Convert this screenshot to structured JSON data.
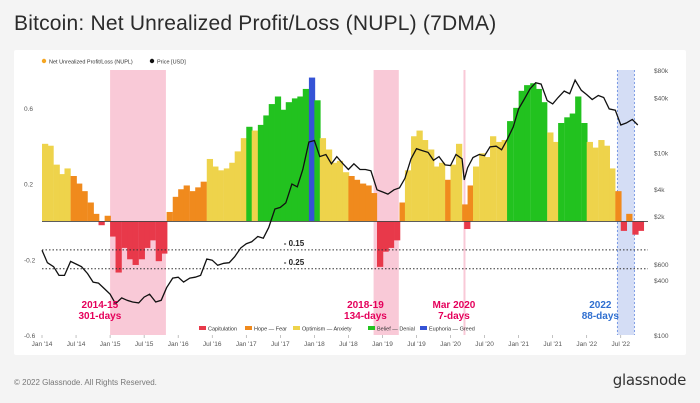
{
  "page": {
    "title": "Bitcoin: Net Unrealized Profit/Loss (NUPL) (7DMA)",
    "copyright": "© 2022 Glassnode. All Rights Reserved.",
    "brand": "glassnode"
  },
  "colors": {
    "capitulation": "#e8394a",
    "hope_fear": "#f08a1d",
    "optimism_anxiety": "#eed34b",
    "belief_denial": "#22c21f",
    "euphoria_greed": "#3553d6",
    "price": "#111111",
    "pink_shade": "#f9c9d7",
    "blue_shade": "#d4ddf5",
    "label_red": "#e5005b",
    "label_blue": "#2f6fd0"
  },
  "chart_data": {
    "type": "bar",
    "title": "",
    "legend_top": [
      {
        "key": "nupl",
        "label": "Net Unrealized Profit/Loss (NUPL)",
        "color": "#f5a623"
      },
      {
        "key": "price",
        "label": "Price [USD]",
        "color": "#111111"
      }
    ],
    "legend_bottom": [
      {
        "label": "Capitulation",
        "color": "#e8394a"
      },
      {
        "label": "Hope — Fear",
        "color": "#f08a1d"
      },
      {
        "label": "Optimism — Anxiety",
        "color": "#eed34b"
      },
      {
        "label": "Belief — Denial",
        "color": "#22c21f"
      },
      {
        "label": "Euphoria — Greed",
        "color": "#3553d6"
      }
    ],
    "x_ticks": [
      "Jan '14",
      "Jul '14",
      "Jan '15",
      "Jul '15",
      "Jan '16",
      "Jul '16",
      "Jan '17",
      "Jul '17",
      "Jan '18",
      "Jul '18",
      "Jan '19",
      "Jul '19",
      "Jan '20",
      "Jul '20",
      "Jan '21",
      "Jul '21",
      "Jan '22",
      "Jul '22"
    ],
    "x_range": [
      2014.0,
      2022.9
    ],
    "y_left": {
      "range": [
        -0.6,
        0.8
      ],
      "ticks": [
        "0.6",
        "0.2",
        "-0.2",
        "-0.6"
      ],
      "tick_values": [
        0.6,
        0.2,
        -0.2,
        -0.6
      ]
    },
    "y_right": {
      "scale": "log",
      "range": [
        100,
        80000
      ],
      "ticks": [
        "$80k",
        "$40k",
        "$10k",
        "$4k",
        "$2k",
        "$600",
        "$400",
        "$100"
      ],
      "tick_values": [
        80000,
        40000,
        10000,
        4000,
        2000,
        600,
        400,
        100
      ]
    },
    "thresholds": [
      {
        "value": -0.15,
        "label": "- 0.15"
      },
      {
        "value": -0.25,
        "label": "- 0.25"
      }
    ],
    "shaded_periods": [
      {
        "start": 2015.0,
        "end": 2015.82,
        "label": "2014-15",
        "sublabel": "301-days",
        "color": "pink"
      },
      {
        "start": 2018.87,
        "end": 2019.24,
        "label": "2018-19",
        "sublabel": "134-days",
        "color": "pink"
      },
      {
        "start": 2020.19,
        "end": 2020.21,
        "label": "Mar 2020",
        "sublabel": "7-days",
        "color": "pink"
      },
      {
        "start": 2022.45,
        "end": 2022.7,
        "label": "2022",
        "sublabel": "88-days",
        "color": "blue"
      }
    ],
    "nupl": [
      {
        "x": 2014.0,
        "y": 0.41
      },
      {
        "x": 2014.08,
        "y": 0.4
      },
      {
        "x": 2014.17,
        "y": 0.3
      },
      {
        "x": 2014.25,
        "y": 0.25
      },
      {
        "x": 2014.33,
        "y": 0.28
      },
      {
        "x": 2014.42,
        "y": 0.24
      },
      {
        "x": 2014.5,
        "y": 0.2
      },
      {
        "x": 2014.58,
        "y": 0.16
      },
      {
        "x": 2014.67,
        "y": 0.1
      },
      {
        "x": 2014.75,
        "y": 0.04
      },
      {
        "x": 2014.83,
        "y": -0.02
      },
      {
        "x": 2014.92,
        "y": 0.03
      },
      {
        "x": 2015.0,
        "y": -0.08
      },
      {
        "x": 2015.08,
        "y": -0.27
      },
      {
        "x": 2015.17,
        "y": -0.14
      },
      {
        "x": 2015.25,
        "y": -0.2
      },
      {
        "x": 2015.33,
        "y": -0.23
      },
      {
        "x": 2015.42,
        "y": -0.2
      },
      {
        "x": 2015.5,
        "y": -0.14
      },
      {
        "x": 2015.58,
        "y": -0.1
      },
      {
        "x": 2015.67,
        "y": -0.21
      },
      {
        "x": 2015.75,
        "y": -0.17
      },
      {
        "x": 2015.83,
        "y": 0.05
      },
      {
        "x": 2015.92,
        "y": 0.13
      },
      {
        "x": 2016.0,
        "y": 0.17
      },
      {
        "x": 2016.08,
        "y": 0.19
      },
      {
        "x": 2016.17,
        "y": 0.16
      },
      {
        "x": 2016.25,
        "y": 0.18
      },
      {
        "x": 2016.33,
        "y": 0.21
      },
      {
        "x": 2016.42,
        "y": 0.33
      },
      {
        "x": 2016.5,
        "y": 0.29
      },
      {
        "x": 2016.58,
        "y": 0.27
      },
      {
        "x": 2016.67,
        "y": 0.28
      },
      {
        "x": 2016.75,
        "y": 0.31
      },
      {
        "x": 2016.83,
        "y": 0.37
      },
      {
        "x": 2016.92,
        "y": 0.44
      },
      {
        "x": 2017.0,
        "y": 0.5
      },
      {
        "x": 2017.08,
        "y": 0.48
      },
      {
        "x": 2017.17,
        "y": 0.51
      },
      {
        "x": 2017.25,
        "y": 0.56
      },
      {
        "x": 2017.33,
        "y": 0.62
      },
      {
        "x": 2017.42,
        "y": 0.66
      },
      {
        "x": 2017.5,
        "y": 0.59
      },
      {
        "x": 2017.58,
        "y": 0.63
      },
      {
        "x": 2017.67,
        "y": 0.65
      },
      {
        "x": 2017.75,
        "y": 0.66
      },
      {
        "x": 2017.83,
        "y": 0.7
      },
      {
        "x": 2017.92,
        "y": 0.76
      },
      {
        "x": 2018.0,
        "y": 0.64
      },
      {
        "x": 2018.08,
        "y": 0.44
      },
      {
        "x": 2018.17,
        "y": 0.38
      },
      {
        "x": 2018.25,
        "y": 0.31
      },
      {
        "x": 2018.33,
        "y": 0.32
      },
      {
        "x": 2018.42,
        "y": 0.26
      },
      {
        "x": 2018.5,
        "y": 0.24
      },
      {
        "x": 2018.58,
        "y": 0.22
      },
      {
        "x": 2018.67,
        "y": 0.2
      },
      {
        "x": 2018.75,
        "y": 0.19
      },
      {
        "x": 2018.83,
        "y": 0.15
      },
      {
        "x": 2018.92,
        "y": -0.24
      },
      {
        "x": 2019.0,
        "y": -0.16
      },
      {
        "x": 2019.08,
        "y": -0.14
      },
      {
        "x": 2019.17,
        "y": -0.1
      },
      {
        "x": 2019.25,
        "y": 0.1
      },
      {
        "x": 2019.33,
        "y": 0.27
      },
      {
        "x": 2019.42,
        "y": 0.45
      },
      {
        "x": 2019.5,
        "y": 0.48
      },
      {
        "x": 2019.58,
        "y": 0.43
      },
      {
        "x": 2019.67,
        "y": 0.38
      },
      {
        "x": 2019.75,
        "y": 0.29
      },
      {
        "x": 2019.83,
        "y": 0.31
      },
      {
        "x": 2019.92,
        "y": 0.22
      },
      {
        "x": 2020.0,
        "y": 0.3
      },
      {
        "x": 2020.08,
        "y": 0.41
      },
      {
        "x": 2020.17,
        "y": 0.09
      },
      {
        "x": 2020.2,
        "y": -0.04
      },
      {
        "x": 2020.25,
        "y": 0.19
      },
      {
        "x": 2020.33,
        "y": 0.29
      },
      {
        "x": 2020.42,
        "y": 0.36
      },
      {
        "x": 2020.5,
        "y": 0.34
      },
      {
        "x": 2020.58,
        "y": 0.45
      },
      {
        "x": 2020.67,
        "y": 0.42
      },
      {
        "x": 2020.75,
        "y": 0.43
      },
      {
        "x": 2020.83,
        "y": 0.53
      },
      {
        "x": 2020.92,
        "y": 0.6
      },
      {
        "x": 2021.0,
        "y": 0.69
      },
      {
        "x": 2021.08,
        "y": 0.72
      },
      {
        "x": 2021.17,
        "y": 0.73
      },
      {
        "x": 2021.25,
        "y": 0.7
      },
      {
        "x": 2021.33,
        "y": 0.63
      },
      {
        "x": 2021.42,
        "y": 0.47
      },
      {
        "x": 2021.5,
        "y": 0.42
      },
      {
        "x": 2021.58,
        "y": 0.52
      },
      {
        "x": 2021.67,
        "y": 0.55
      },
      {
        "x": 2021.75,
        "y": 0.57
      },
      {
        "x": 2021.83,
        "y": 0.66
      },
      {
        "x": 2021.92,
        "y": 0.52
      },
      {
        "x": 2022.0,
        "y": 0.42
      },
      {
        "x": 2022.08,
        "y": 0.39
      },
      {
        "x": 2022.17,
        "y": 0.43
      },
      {
        "x": 2022.25,
        "y": 0.4
      },
      {
        "x": 2022.33,
        "y": 0.28
      },
      {
        "x": 2022.42,
        "y": 0.16
      },
      {
        "x": 2022.5,
        "y": -0.05
      },
      {
        "x": 2022.58,
        "y": 0.04
      },
      {
        "x": 2022.67,
        "y": -0.07
      },
      {
        "x": 2022.75,
        "y": -0.05
      }
    ],
    "price": [
      {
        "x": 2014.0,
        "y": 850
      },
      {
        "x": 2014.08,
        "y": 620
      },
      {
        "x": 2014.17,
        "y": 560
      },
      {
        "x": 2014.25,
        "y": 450
      },
      {
        "x": 2014.33,
        "y": 450
      },
      {
        "x": 2014.42,
        "y": 640
      },
      {
        "x": 2014.5,
        "y": 600
      },
      {
        "x": 2014.58,
        "y": 560
      },
      {
        "x": 2014.67,
        "y": 470
      },
      {
        "x": 2014.75,
        "y": 380
      },
      {
        "x": 2014.83,
        "y": 370
      },
      {
        "x": 2014.92,
        "y": 320
      },
      {
        "x": 2015.0,
        "y": 280
      },
      {
        "x": 2015.08,
        "y": 220
      },
      {
        "x": 2015.17,
        "y": 255
      },
      {
        "x": 2015.25,
        "y": 240
      },
      {
        "x": 2015.33,
        "y": 230
      },
      {
        "x": 2015.42,
        "y": 225
      },
      {
        "x": 2015.5,
        "y": 260
      },
      {
        "x": 2015.58,
        "y": 280
      },
      {
        "x": 2015.67,
        "y": 230
      },
      {
        "x": 2015.75,
        "y": 240
      },
      {
        "x": 2015.83,
        "y": 330
      },
      {
        "x": 2015.92,
        "y": 420
      },
      {
        "x": 2016.0,
        "y": 430
      },
      {
        "x": 2016.08,
        "y": 380
      },
      {
        "x": 2016.17,
        "y": 420
      },
      {
        "x": 2016.25,
        "y": 430
      },
      {
        "x": 2016.33,
        "y": 450
      },
      {
        "x": 2016.42,
        "y": 680
      },
      {
        "x": 2016.5,
        "y": 660
      },
      {
        "x": 2016.58,
        "y": 580
      },
      {
        "x": 2016.67,
        "y": 610
      },
      {
        "x": 2016.75,
        "y": 620
      },
      {
        "x": 2016.83,
        "y": 720
      },
      {
        "x": 2016.92,
        "y": 900
      },
      {
        "x": 2017.0,
        "y": 1000
      },
      {
        "x": 2017.08,
        "y": 1050
      },
      {
        "x": 2017.17,
        "y": 1200
      },
      {
        "x": 2017.25,
        "y": 1150
      },
      {
        "x": 2017.33,
        "y": 1500
      },
      {
        "x": 2017.42,
        "y": 2400
      },
      {
        "x": 2017.5,
        "y": 2500
      },
      {
        "x": 2017.58,
        "y": 2800
      },
      {
        "x": 2017.67,
        "y": 4500
      },
      {
        "x": 2017.75,
        "y": 4200
      },
      {
        "x": 2017.83,
        "y": 6500
      },
      {
        "x": 2017.92,
        "y": 13000
      },
      {
        "x": 2018.0,
        "y": 13500
      },
      {
        "x": 2018.08,
        "y": 9000
      },
      {
        "x": 2018.17,
        "y": 9500
      },
      {
        "x": 2018.25,
        "y": 7500
      },
      {
        "x": 2018.33,
        "y": 9000
      },
      {
        "x": 2018.42,
        "y": 7500
      },
      {
        "x": 2018.5,
        "y": 6500
      },
      {
        "x": 2018.58,
        "y": 7500
      },
      {
        "x": 2018.67,
        "y": 6500
      },
      {
        "x": 2018.75,
        "y": 6500
      },
      {
        "x": 2018.83,
        "y": 6300
      },
      {
        "x": 2018.92,
        "y": 3900
      },
      {
        "x": 2019.0,
        "y": 3700
      },
      {
        "x": 2019.08,
        "y": 3500
      },
      {
        "x": 2019.17,
        "y": 3900
      },
      {
        "x": 2019.25,
        "y": 4100
      },
      {
        "x": 2019.33,
        "y": 5200
      },
      {
        "x": 2019.42,
        "y": 8500
      },
      {
        "x": 2019.5,
        "y": 11000
      },
      {
        "x": 2019.58,
        "y": 10500
      },
      {
        "x": 2019.67,
        "y": 10000
      },
      {
        "x": 2019.75,
        "y": 8200
      },
      {
        "x": 2019.83,
        "y": 9000
      },
      {
        "x": 2019.92,
        "y": 7300
      },
      {
        "x": 2020.0,
        "y": 7200
      },
      {
        "x": 2020.08,
        "y": 9500
      },
      {
        "x": 2020.17,
        "y": 8500
      },
      {
        "x": 2020.2,
        "y": 5000
      },
      {
        "x": 2020.25,
        "y": 6800
      },
      {
        "x": 2020.33,
        "y": 8800
      },
      {
        "x": 2020.42,
        "y": 9500
      },
      {
        "x": 2020.5,
        "y": 9200
      },
      {
        "x": 2020.58,
        "y": 11500
      },
      {
        "x": 2020.67,
        "y": 11700
      },
      {
        "x": 2020.75,
        "y": 10700
      },
      {
        "x": 2020.83,
        "y": 13800
      },
      {
        "x": 2020.92,
        "y": 19000
      },
      {
        "x": 2021.0,
        "y": 30000
      },
      {
        "x": 2021.08,
        "y": 38000
      },
      {
        "x": 2021.17,
        "y": 50000
      },
      {
        "x": 2021.25,
        "y": 58000
      },
      {
        "x": 2021.33,
        "y": 56000
      },
      {
        "x": 2021.42,
        "y": 37000
      },
      {
        "x": 2021.5,
        "y": 34000
      },
      {
        "x": 2021.58,
        "y": 40000
      },
      {
        "x": 2021.67,
        "y": 47000
      },
      {
        "x": 2021.75,
        "y": 44000
      },
      {
        "x": 2021.83,
        "y": 62000
      },
      {
        "x": 2021.92,
        "y": 48000
      },
      {
        "x": 2022.0,
        "y": 43000
      },
      {
        "x": 2022.08,
        "y": 38000
      },
      {
        "x": 2022.17,
        "y": 42000
      },
      {
        "x": 2022.25,
        "y": 40000
      },
      {
        "x": 2022.33,
        "y": 30000
      },
      {
        "x": 2022.42,
        "y": 29000
      },
      {
        "x": 2022.5,
        "y": 20000
      },
      {
        "x": 2022.58,
        "y": 21000
      },
      {
        "x": 2022.67,
        "y": 23000
      },
      {
        "x": 2022.75,
        "y": 20000
      }
    ]
  }
}
